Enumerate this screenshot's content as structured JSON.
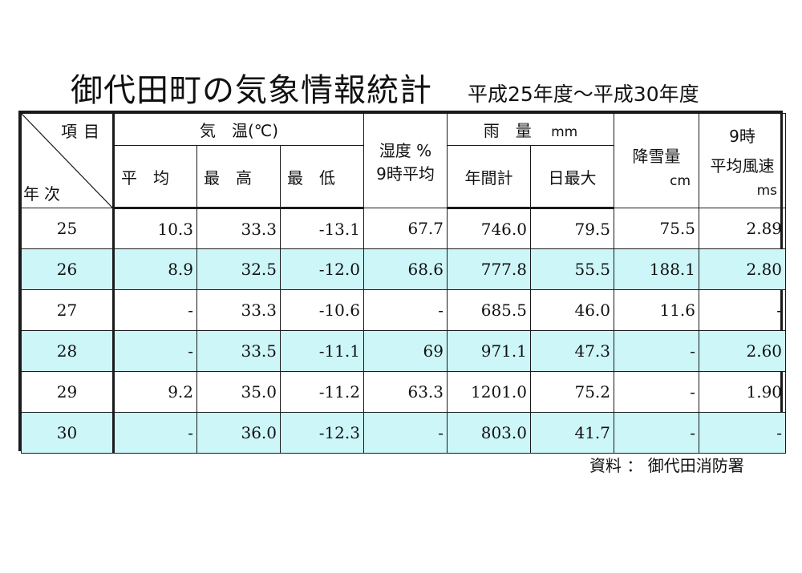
{
  "title": "御代田町の気象情報統計",
  "subtitle": "平成25年度～平成30年度",
  "header": {
    "corner_top": "項目",
    "corner_bottom": "年次",
    "temperature": "気　温(℃)",
    "temp_avg": "平　均",
    "temp_max": "最　高",
    "temp_min": "最　低",
    "humidity_line1": "湿度 %",
    "humidity_line2": "9時平均",
    "rain": "雨　量",
    "rain_unit": "mm",
    "rain_year": "年間計",
    "rain_day": "日最大",
    "snow": "降雪量",
    "snow_unit": "cm",
    "wind_line1": "9時",
    "wind_line2": "平均風速",
    "wind_unit": "ms"
  },
  "rows": [
    {
      "year": "25",
      "avg": "10.3",
      "max": "33.3",
      "min": "-13.1",
      "humidity": "67.7",
      "rain_year": "746.0",
      "rain_day": "79.5",
      "snow": "75.5",
      "wind": "2.89"
    },
    {
      "year": "26",
      "avg": "8.9",
      "max": "32.5",
      "min": "-12.0",
      "humidity": "68.6",
      "rain_year": "777.8",
      "rain_day": "55.5",
      "snow": "188.1",
      "wind": "2.80"
    },
    {
      "year": "27",
      "avg": "-",
      "max": "33.3",
      "min": "-10.6",
      "humidity": "-",
      "rain_year": "685.5",
      "rain_day": "46.0",
      "snow": "11.6",
      "wind": "-"
    },
    {
      "year": "28",
      "avg": "-",
      "max": "33.5",
      "min": "-11.1",
      "humidity": "69",
      "rain_year": "971.1",
      "rain_day": "47.3",
      "snow": "-",
      "wind": "2.60"
    },
    {
      "year": "29",
      "avg": "9.2",
      "max": "35.0",
      "min": "-11.2",
      "humidity": "63.3",
      "rain_year": "1201.0",
      "rain_day": "75.2",
      "snow": "-",
      "wind": "1.90"
    },
    {
      "year": "30",
      "avg": "-",
      "max": "36.0",
      "min": "-12.3",
      "humidity": "-",
      "rain_year": "803.0",
      "rain_day": "41.7",
      "snow": "-",
      "wind": "-"
    }
  ],
  "source": "資料 ： 御代田消防署",
  "colors": {
    "shaded_row": "#cdf6f8",
    "border": "#1a1a1a"
  }
}
